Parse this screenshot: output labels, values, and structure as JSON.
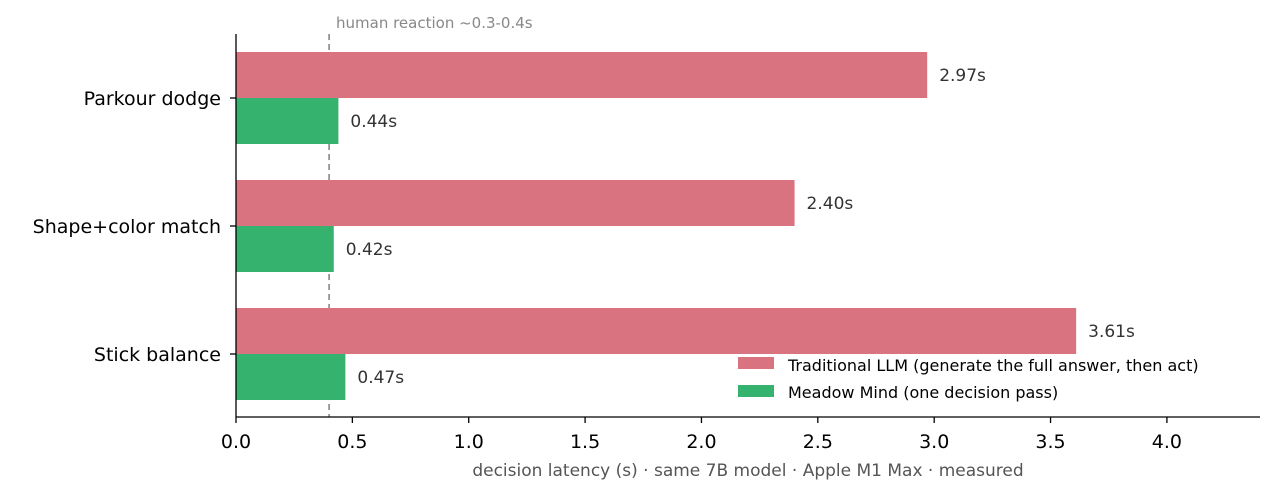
{
  "chart_data": {
    "type": "bar",
    "orientation": "horizontal",
    "categories": [
      "Parkour dodge",
      "Shape+color match",
      "Stick balance"
    ],
    "series": [
      {
        "name": "Traditional LLM (generate the full answer, then act)",
        "values": [
          2.97,
          2.4,
          3.61
        ],
        "labels": [
          "2.97s",
          "2.40s",
          "3.61s"
        ],
        "color": "#d9737f"
      },
      {
        "name": "Meadow Mind (one decision pass)",
        "values": [
          0.44,
          0.42,
          0.47
        ],
        "labels": [
          "0.44s",
          "0.42s",
          "0.47s"
        ],
        "color": "#34b26e"
      }
    ],
    "xlabel": "decision latency (s) · same 7B model · Apple M1 Max · measured",
    "xlim": [
      0,
      4.4
    ],
    "xticks": [
      0.0,
      0.5,
      1.0,
      1.5,
      2.0,
      2.5,
      3.0,
      3.5,
      4.0
    ],
    "xtick_labels": [
      "0.0",
      "0.5",
      "1.0",
      "1.5",
      "2.0",
      "2.5",
      "3.0",
      "3.5",
      "4.0"
    ],
    "reference_line": {
      "x": 0.4,
      "label": "human reaction ~0.3-0.4s",
      "color": "#888888",
      "style": "dashed"
    },
    "grid": false,
    "legend_position": "lower-right"
  }
}
